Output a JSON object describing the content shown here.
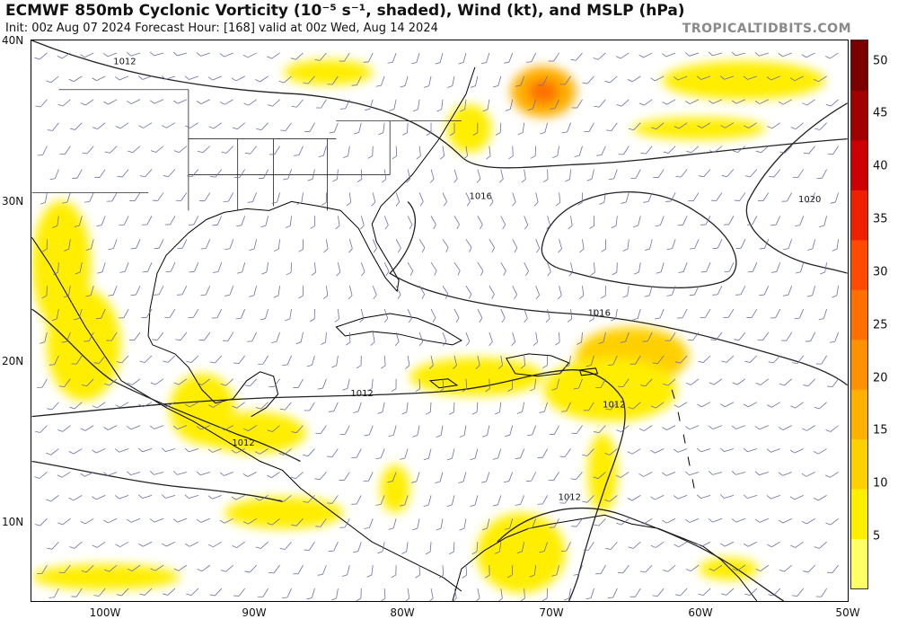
{
  "header": {
    "title": "ECMWF 850mb Cyclonic Vorticity (10⁻⁵ s⁻¹, shaded), Wind (kt), and MSLP (hPa)",
    "subtitle": "Init: 00z Aug 07 2024   Forecast Hour: [168]   valid at 00z Wed, Aug 14 2024",
    "credit": "TROPICALTIDBITS.COM"
  },
  "chart_data": {
    "type": "map",
    "lon_range": [
      -105,
      -50
    ],
    "lat_range": [
      5,
      40
    ],
    "lat_labels": [
      "40N",
      "30N",
      "20N",
      "10N"
    ],
    "lon_labels": [
      "100W",
      "90W",
      "80W",
      "70W",
      "60W",
      "50W"
    ],
    "colorbar": {
      "min": 0,
      "max": 52,
      "ticks": [
        "5",
        "10",
        "15",
        "20",
        "25",
        "30",
        "35",
        "40",
        "45",
        "50"
      ],
      "colors": [
        "#ffff66",
        "#ffee00",
        "#ffd000",
        "#ffb000",
        "#ff9000",
        "#ff7000",
        "#ff4a00",
        "#ee2000",
        "#cc0000",
        "#a00000",
        "#7a0000"
      ]
    },
    "isobar_labels": [
      {
        "text": "1012",
        "lon": -99.5,
        "lat": 38.5
      },
      {
        "text": "1016",
        "lon": -75.5,
        "lat": 30.1
      },
      {
        "text": "1020",
        "lon": -53.3,
        "lat": 29.9
      },
      {
        "text": "1016",
        "lon": -67.5,
        "lat": 22.8
      },
      {
        "text": "1012",
        "lon": -83.5,
        "lat": 17.8
      },
      {
        "text": "1012",
        "lon": -91.5,
        "lat": 14.7
      },
      {
        "text": "1012",
        "lon": -66.5,
        "lat": 17.1
      },
      {
        "text": "1012",
        "lon": -69.5,
        "lat": 11.3
      }
    ],
    "vorticity_blobs": [
      {
        "lon": -70.5,
        "lat": 36.8,
        "rx": 2.2,
        "ry": 1.6,
        "level": 18
      },
      {
        "lon": -64.5,
        "lat": 20.3,
        "rx": 3.8,
        "ry": 1.8,
        "level": 10
      },
      {
        "lon": -66.0,
        "lat": 18.2,
        "rx": 4.5,
        "ry": 2.0,
        "level": 6
      },
      {
        "lon": -75.0,
        "lat": 19.0,
        "rx": 4.5,
        "ry": 1.2,
        "level": 6
      },
      {
        "lon": -90.0,
        "lat": 15.5,
        "rx": 3.5,
        "ry": 1.3,
        "level": 6
      },
      {
        "lon": -93.5,
        "lat": 17.0,
        "rx": 2.2,
        "ry": 2.2,
        "level": 7
      },
      {
        "lon": -101.5,
        "lat": 21.0,
        "rx": 2.5,
        "ry": 3.5,
        "level": 6
      },
      {
        "lon": -103.0,
        "lat": 26.0,
        "rx": 2.0,
        "ry": 4.0,
        "level": 6
      },
      {
        "lon": -88.0,
        "lat": 10.5,
        "rx": 4.0,
        "ry": 1.0,
        "level": 6
      },
      {
        "lon": -72.0,
        "lat": 8.0,
        "rx": 3.0,
        "ry": 2.5,
        "level": 7
      },
      {
        "lon": -100.0,
        "lat": 6.5,
        "rx": 5.0,
        "ry": 0.8,
        "level": 6
      },
      {
        "lon": -66.5,
        "lat": 13.0,
        "rx": 1.0,
        "ry": 2.5,
        "level": 6
      },
      {
        "lon": -57.0,
        "lat": 37.5,
        "rx": 5.5,
        "ry": 1.2,
        "level": 6
      },
      {
        "lon": -75.5,
        "lat": 34.5,
        "rx": 1.5,
        "ry": 1.5,
        "level": 6
      },
      {
        "lon": -60.0,
        "lat": 34.5,
        "rx": 4.5,
        "ry": 0.7,
        "level": 6
      },
      {
        "lon": -85.0,
        "lat": 38.0,
        "rx": 3.0,
        "ry": 0.8,
        "level": 5
      },
      {
        "lon": -80.5,
        "lat": 12.0,
        "rx": 1.0,
        "ry": 1.5,
        "level": 6
      },
      {
        "lon": -58.0,
        "lat": 7.0,
        "rx": 2.0,
        "ry": 0.7,
        "level": 5
      }
    ],
    "grid": false,
    "wind_barbs": true
  }
}
